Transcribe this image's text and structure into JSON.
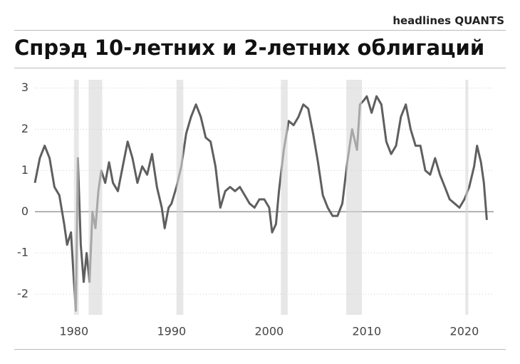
{
  "header": "headlines QUANTS",
  "chart_data": {
    "type": "line",
    "title": "Спрэд 10-летних и 2-летних облигаций",
    "x": [
      1976.0,
      1976.5,
      1977.0,
      1977.5,
      1978.0,
      1978.5,
      1979.0,
      1979.3,
      1979.7,
      1980.0,
      1980.2,
      1980.4,
      1980.7,
      1981.0,
      1981.3,
      1981.6,
      1981.9,
      1982.2,
      1982.5,
      1982.8,
      1983.2,
      1983.6,
      1984.0,
      1984.5,
      1985.0,
      1985.5,
      1986.0,
      1986.5,
      1987.0,
      1987.5,
      1988.0,
      1988.5,
      1989.0,
      1989.3,
      1989.7,
      1990.0,
      1990.5,
      1991.0,
      1991.5,
      1992.0,
      1992.5,
      1993.0,
      1993.5,
      1994.0,
      1994.5,
      1995.0,
      1995.5,
      1996.0,
      1996.5,
      1997.0,
      1997.5,
      1998.0,
      1998.5,
      1999.0,
      1999.5,
      2000.0,
      2000.3,
      2000.7,
      2001.0,
      2001.5,
      2002.0,
      2002.5,
      2003.0,
      2003.5,
      2004.0,
      2004.5,
      2005.0,
      2005.5,
      2006.0,
      2006.5,
      2007.0,
      2007.5,
      2008.0,
      2008.5,
      2009.0,
      2009.3,
      2009.7,
      2010.0,
      2010.5,
      2011.0,
      2011.5,
      2012.0,
      2012.5,
      2013.0,
      2013.5,
      2014.0,
      2014.5,
      2015.0,
      2015.5,
      2016.0,
      2016.5,
      2017.0,
      2017.5,
      2018.0,
      2018.5,
      2019.0,
      2019.5,
      2020.0,
      2020.5,
      2021.0,
      2021.3,
      2021.7,
      2022.0,
      2022.3
    ],
    "series": [
      {
        "color": "#5f5f5f",
        "values": [
          0.7,
          1.3,
          1.6,
          1.3,
          0.6,
          0.4,
          -0.3,
          -0.8,
          -0.5,
          -1.7,
          -2.4,
          1.3,
          -0.8,
          -1.7,
          -1.0,
          -1.7,
          0.0,
          -0.4,
          0.5,
          1.0,
          0.7,
          1.2,
          0.7,
          0.5,
          1.1,
          1.7,
          1.3,
          0.7,
          1.1,
          0.9,
          1.4,
          0.6,
          0.1,
          -0.4,
          0.1,
          0.2,
          0.6,
          1.1,
          1.9,
          2.3,
          2.6,
          2.3,
          1.8,
          1.7,
          1.1,
          0.1,
          0.5,
          0.6,
          0.5,
          0.6,
          0.4,
          0.2,
          0.1,
          0.3,
          0.3,
          0.1,
          -0.5,
          -0.3,
          0.5,
          1.5,
          2.2,
          2.1,
          2.3,
          2.6,
          2.5,
          1.9,
          1.2,
          0.4,
          0.1,
          -0.1,
          -0.1,
          0.2,
          1.2,
          2.0,
          1.5,
          2.6,
          2.7,
          2.8,
          2.4,
          2.8,
          2.6,
          1.7,
          1.4,
          1.6,
          2.3,
          2.6,
          2.0,
          1.6,
          1.6,
          1.0,
          0.9,
          1.3,
          0.9,
          0.6,
          0.3,
          0.2,
          0.1,
          0.3,
          0.6,
          1.1,
          1.6,
          1.2,
          0.7,
          -0.2
        ]
      }
    ],
    "recessions": [
      [
        1980.0,
        1980.5
      ],
      [
        1981.5,
        1982.9
      ],
      [
        1990.5,
        1991.2
      ],
      [
        2001.2,
        2001.9
      ],
      [
        2007.9,
        2009.5
      ],
      [
        2020.1,
        2020.4
      ]
    ],
    "xlim": [
      1976,
      2023
    ],
    "xticks": [
      1980,
      1990,
      2000,
      2010,
      2020
    ],
    "ylim": [
      -2.5,
      3.2
    ],
    "yticks": [
      -2,
      -1,
      0,
      1,
      2,
      3
    ],
    "grid": true
  }
}
